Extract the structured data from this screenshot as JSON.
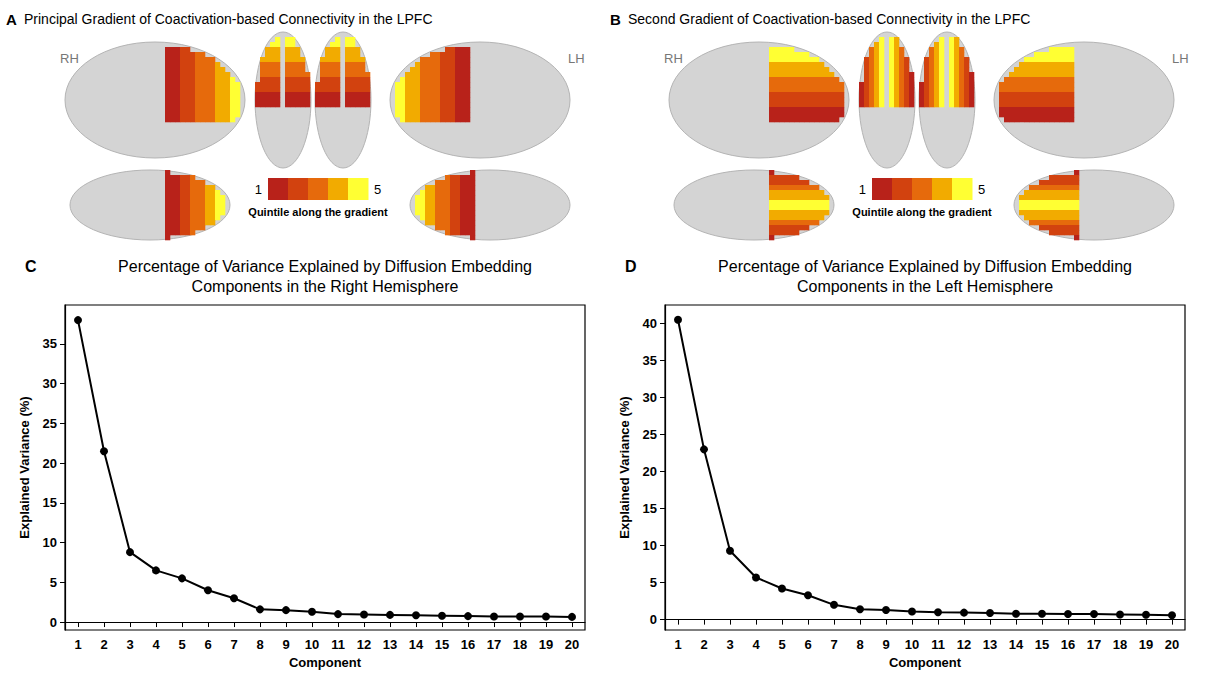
{
  "brain_panels": [
    {
      "panel": "A",
      "title": "Principal Gradient of Coactivation-based Connectivity in the LPFC",
      "hemispheres": [
        "RH",
        "LH"
      ],
      "colorbar": {
        "range": [
          1,
          5
        ],
        "ticks": [
          1,
          5
        ],
        "label": "Quintile along the gradient",
        "colors": [
          "#b8221a",
          "#d2420f",
          "#e66a0c",
          "#f2ab00",
          "#ffff33"
        ]
      }
    },
    {
      "panel": "B",
      "title": "Second Gradient of Coactivation-based Connectivity in the LPFC",
      "hemispheres": [
        "RH",
        "LH"
      ],
      "colorbar": {
        "range": [
          1,
          5
        ],
        "ticks": [
          1,
          5
        ],
        "label": "Quintile along the gradient",
        "colors": [
          "#b8221a",
          "#d2420f",
          "#e66a0c",
          "#f2ab00",
          "#ffff33"
        ]
      }
    }
  ],
  "chart_data": [
    {
      "panel": "C",
      "type": "line",
      "title": "Percentage of Variance Explained by Diffusion Embedding Components in the Right Hemisphere",
      "x_label": "Component",
      "y_label": "Explained Variance (%)",
      "categories": [
        "1",
        "2",
        "3",
        "4",
        "5",
        "6",
        "7",
        "8",
        "9",
        "10",
        "11",
        "12",
        "13",
        "14",
        "15",
        "16",
        "17",
        "18",
        "19",
        "20"
      ],
      "values": [
        38.0,
        21.5,
        8.8,
        6.5,
        5.5,
        4.0,
        3.0,
        1.6,
        1.5,
        1.3,
        1.0,
        0.95,
        0.9,
        0.85,
        0.8,
        0.75,
        0.7,
        0.7,
        0.7,
        0.65
      ],
      "color": "#000000",
      "marker": "circle",
      "line_style": "solid",
      "ylim": [
        -1.0,
        39.9
      ],
      "yticks": [
        0,
        5,
        10,
        15,
        20,
        25,
        30,
        35
      ],
      "grid": false
    },
    {
      "panel": "D",
      "type": "line",
      "title": "Percentage of Variance Explained by Diffusion Embedding Components in the Left Hemisphere",
      "x_label": "Component",
      "y_label": "Explained Variance (%)",
      "categories": [
        "1",
        "2",
        "3",
        "4",
        "5",
        "6",
        "7",
        "8",
        "9",
        "10",
        "11",
        "12",
        "13",
        "14",
        "15",
        "16",
        "17",
        "18",
        "19",
        "20"
      ],
      "values": [
        40.5,
        23.0,
        9.3,
        5.7,
        4.2,
        3.3,
        2.0,
        1.4,
        1.3,
        1.1,
        1.0,
        0.95,
        0.9,
        0.8,
        0.8,
        0.75,
        0.75,
        0.7,
        0.65,
        0.6
      ],
      "color": "#000000",
      "marker": "circle",
      "line_style": "solid",
      "ylim": [
        -1.4,
        42.5
      ],
      "yticks": [
        0,
        5,
        10,
        15,
        20,
        25,
        30,
        35,
        40
      ],
      "grid": false
    }
  ]
}
